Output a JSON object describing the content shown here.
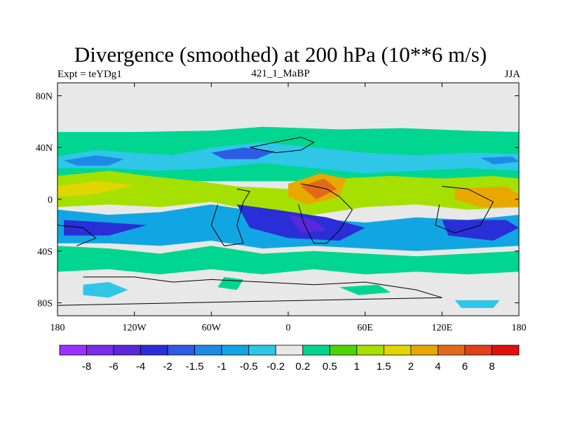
{
  "chart_data": {
    "type": "heatmap",
    "title": "Divergence (smoothed) at 200 hPa (10**6 m/s)",
    "left_string": "Expt = teYDg1",
    "center_string": "421_1_MaBP",
    "right_string": "JJA",
    "x_ticks": [
      "180",
      "120W",
      "60W",
      "0",
      "60E",
      "120E",
      "180"
    ],
    "y_ticks": [
      "80N",
      "40N",
      "0",
      "40S",
      "80S"
    ],
    "xlim": [
      -180,
      180
    ],
    "ylim": [
      -90,
      90
    ],
    "colorbar_labels": [
      "-8",
      "-6",
      "-4",
      "-2",
      "-1.5",
      "-1",
      "-0.5",
      "-0.2",
      "0.2",
      "0.5",
      "1",
      "1.5",
      "2",
      "4",
      "6",
      "8"
    ],
    "levels": [
      -8,
      -6,
      -4,
      -2,
      -1.5,
      -1,
      -0.5,
      -0.2,
      0.2,
      0.5,
      1,
      1.5,
      2,
      4,
      6,
      8
    ],
    "colors": [
      "#9B30FF",
      "#7A2EEA",
      "#5A28DA",
      "#2A2ED6",
      "#2E5BE6",
      "#1E8AE6",
      "#11A6E3",
      "#2FC6E8",
      "#E8E8E8",
      "#00D68F",
      "#4CD600",
      "#A6E000",
      "#E2D600",
      "#E8A800",
      "#E2691A",
      "#E0401A",
      "#E01010"
    ]
  }
}
